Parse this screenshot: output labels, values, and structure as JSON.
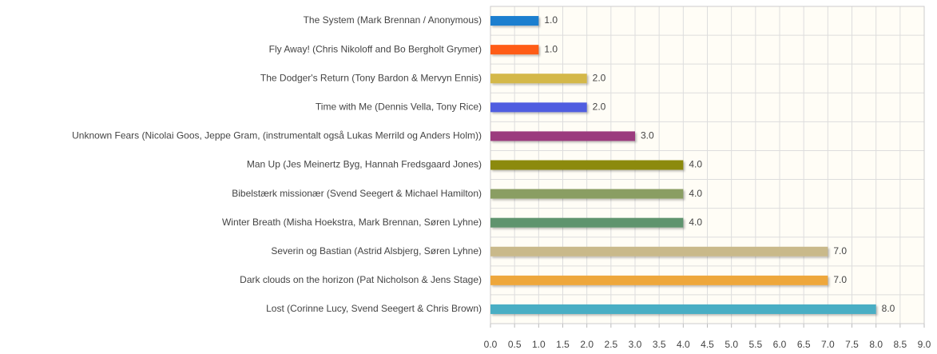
{
  "chart_data": {
    "type": "hbar",
    "categories": [
      "The System  (Mark Brennan / Anonymous)",
      "Fly Away!  (Chris Nikoloff and  Bo Bergholt Grymer)",
      "The Dodger's Return  (Tony Bardon & Mervyn Ennis)",
      "Time with Me  (Dennis Vella, Tony Rice)",
      "Unknown Fears  (Nicolai Goos, Jeppe Gram, (instrumentalt også Lukas Merrild og Anders Holm))",
      "Man Up  (Jes Meinertz Byg, Hannah Fredsgaard Jones)",
      "Bibelstærk missionær  (Svend Seegert & Michael Hamilton)",
      "Winter Breath  (Misha Hoekstra, Mark Brennan, Søren Lyhne)",
      "Severin og Bastian  (Astrid Alsbjerg, Søren Lyhne)",
      "Dark clouds on the horizon  (Pat Nicholson & Jens Stage)",
      "Lost  (Corinne Lucy, Svend Seegert & Chris Brown)"
    ],
    "values": [
      1,
      1,
      2,
      2,
      3,
      4,
      4,
      4,
      7,
      7,
      8
    ],
    "value_labels": [
      "1.0",
      "1.0",
      "2.0",
      "2.0",
      "3.0",
      "4.0",
      "4.0",
      "4.0",
      "7.0",
      "7.0",
      "8.0"
    ],
    "colors": [
      "#1a7fcf",
      "#ff5b13",
      "#d4b84a",
      "#4f5de0",
      "#9b3a7e",
      "#8c8a10",
      "#8a9e63",
      "#5e946e",
      "#c9b98a",
      "#eea73a",
      "#4aaec4"
    ],
    "xlim": [
      0,
      9
    ],
    "xticks": [
      {
        "value": 0,
        "label": "0.0"
      },
      {
        "value": 0.5,
        "label": "0.5"
      },
      {
        "value": 1,
        "label": "1.0"
      },
      {
        "value": 1.5,
        "label": "1.5"
      },
      {
        "value": 2,
        "label": "2.0"
      },
      {
        "value": 2.5,
        "label": "2.5"
      },
      {
        "value": 3,
        "label": "3.0"
      },
      {
        "value": 3.5,
        "label": "3.5"
      },
      {
        "value": 4,
        "label": "4.0"
      },
      {
        "value": 4.5,
        "label": "4.5"
      },
      {
        "value": 5,
        "label": "5.0"
      },
      {
        "value": 5.5,
        "label": "5.5"
      },
      {
        "value": 6,
        "label": "6.0"
      },
      {
        "value": 6.5,
        "label": "6.5"
      },
      {
        "value": 7,
        "label": "7.0"
      },
      {
        "value": 7.5,
        "label": "7.5"
      },
      {
        "value": 8,
        "label": "8.0"
      },
      {
        "value": 8.5,
        "label": "8.5"
      },
      {
        "value": 9,
        "label": "9.0"
      }
    ],
    "grid": true
  }
}
